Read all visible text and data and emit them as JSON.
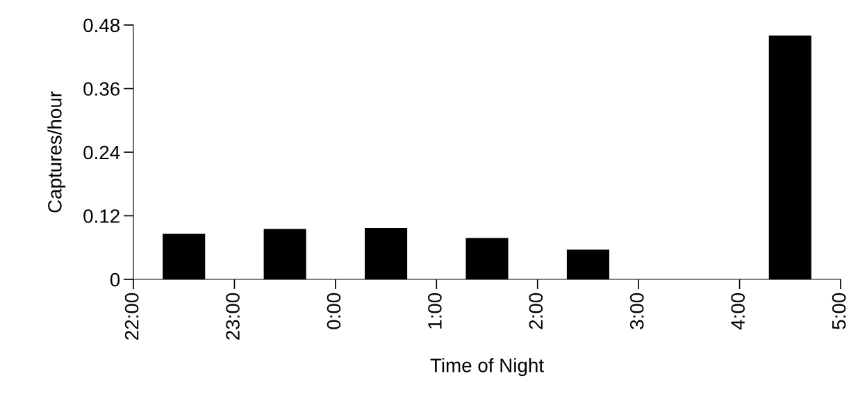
{
  "chart_data": {
    "type": "bar",
    "xlabel": "Time of Night",
    "ylabel": "Captures/hour",
    "x": [
      "2000-01-01T22:30",
      "2000-01-01T23:30",
      "2000-01-02T00:30",
      "2000-01-02T01:30",
      "2000-01-02T02:30",
      "2000-01-02T03:30",
      "2000-01-02T04:30"
    ],
    "values": [
      0.086,
      0.095,
      0.097,
      0.078,
      0.056,
      0,
      0.46
    ],
    "color": "#000000",
    "xlim": [
      "2000-01-01T22:00",
      "2000-01-02T05:00"
    ],
    "xticks": [
      {
        "value": "2000-01-01T22:00",
        "label": "22:00"
      },
      {
        "value": "2000-01-01T23:00",
        "label": "23:00"
      },
      {
        "value": "2000-01-02T00:00",
        "label": "0:00"
      },
      {
        "value": "2000-01-02T01:00",
        "label": "1:00"
      },
      {
        "value": "2000-01-02T02:00",
        "label": "2:00"
      },
      {
        "value": "2000-01-02T03:00",
        "label": "3:00"
      },
      {
        "value": "2000-01-02T04:00",
        "label": "4:00"
      },
      {
        "value": "2000-01-02T05:00",
        "label": "5:00"
      }
    ],
    "ylim": [
      0,
      0.48
    ],
    "yticks": [
      0,
      0.12,
      0.24,
      0.36,
      0.48
    ],
    "grid": false
  }
}
